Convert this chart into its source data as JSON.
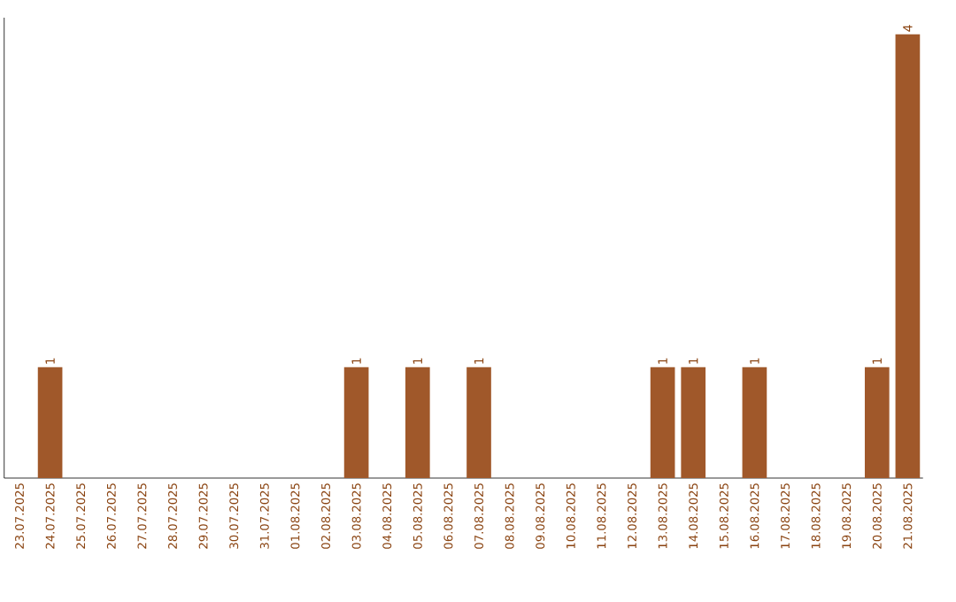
{
  "chart_data": {
    "type": "bar",
    "categories": [
      "23.07.2025",
      "24.07.2025",
      "25.07.2025",
      "26.07.2025",
      "27.07.2025",
      "28.07.2025",
      "29.07.2025",
      "30.07.2025",
      "31.07.2025",
      "01.08.2025",
      "02.08.2025",
      "03.08.2025",
      "04.08.2025",
      "05.08.2025",
      "06.08.2025",
      "07.08.2025",
      "08.08.2025",
      "09.08.2025",
      "10.08.2025",
      "11.08.2025",
      "12.08.2025",
      "13.08.2025",
      "14.08.2025",
      "15.08.2025",
      "16.08.2025",
      "17.08.2025",
      "18.08.2025",
      "19.08.2025",
      "20.08.2025",
      "21.08.2025"
    ],
    "values": [
      0,
      1,
      0,
      0,
      0,
      0,
      0,
      0,
      0,
      0,
      0,
      1,
      0,
      1,
      0,
      1,
      0,
      0,
      0,
      0,
      0,
      1,
      1,
      0,
      1,
      0,
      0,
      0,
      1,
      4
    ],
    "value_labels": [
      null,
      "1",
      null,
      null,
      null,
      null,
      null,
      null,
      null,
      null,
      null,
      "1",
      null,
      "1",
      null,
      "1",
      null,
      null,
      null,
      null,
      null,
      "1",
      "1",
      null,
      "1",
      null,
      null,
      null,
      "1",
      "4"
    ],
    "color": "#a0582a",
    "ylim": [
      0,
      4.15
    ],
    "tick_labels": "x"
  }
}
